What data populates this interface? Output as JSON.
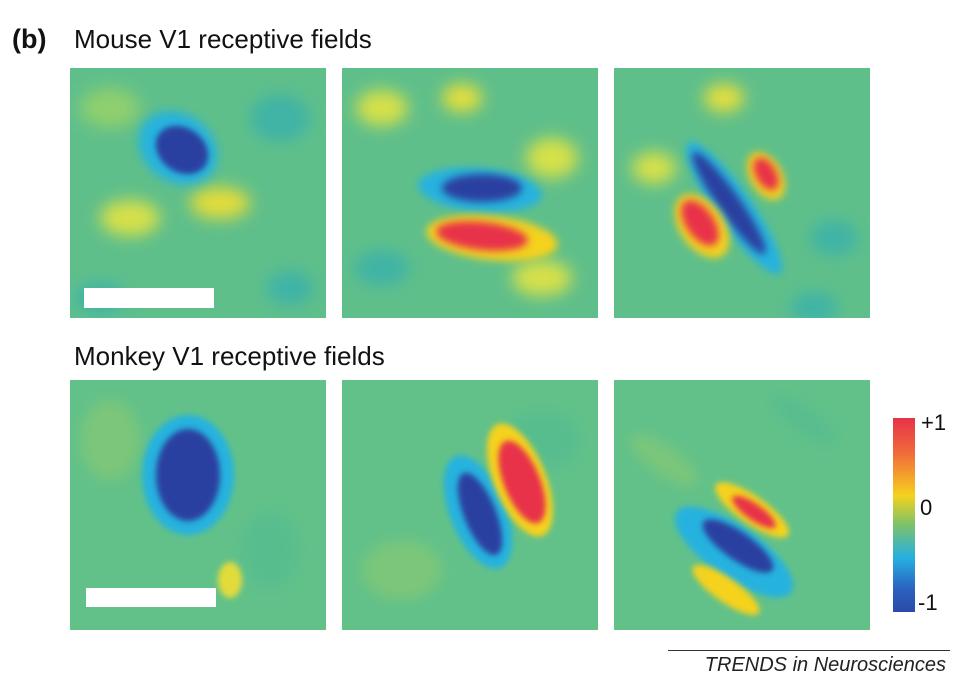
{
  "panel_label": "(b)",
  "rows": {
    "mouse_title": "Mouse V1 receptive fields",
    "monkey_title": "Monkey V1 receptive fields"
  },
  "colorbar": {
    "max_label": "+1",
    "mid_label": "0",
    "min_label": "-1",
    "colors": [
      "#e8324a",
      "#f5d21e",
      "#7cc26a",
      "#26b0e0",
      "#2a4aa8"
    ]
  },
  "credit": "TRENDS in Neurosciences",
  "colors": {
    "background_field": "#5fbf8a",
    "positive": "#e8324a",
    "negative": "#2a3fa0",
    "scale_bar": "#ffffff"
  }
}
